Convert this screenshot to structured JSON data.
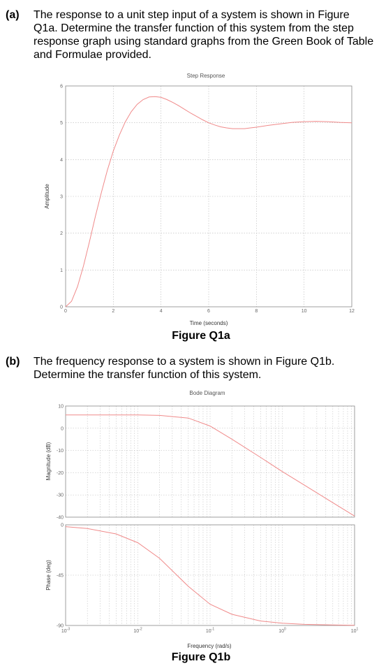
{
  "questions": {
    "a": {
      "label": "(a)",
      "text": "The response to a unit step input of a system is shown in Figure Q1a. Determine the transfer function of this system from the step response graph using standard graphs from the Green Book of Table and Formulae provided."
    },
    "b": {
      "label": "(b)",
      "text": "The frequency response to a system is shown in Figure Q1b. Determine the transfer function of this system."
    }
  },
  "figures": {
    "q1a_caption": "Figure Q1a",
    "q1b_caption": "Figure Q1b"
  },
  "colors": {
    "curve": "#f08a8a",
    "grid": "#b8b8b8",
    "axis": "#888888"
  },
  "chart_data": [
    {
      "type": "line",
      "title": "Step Response",
      "xlabel": "Time (seconds)",
      "ylabel": "Amplitude",
      "xlim": [
        0,
        12
      ],
      "ylim": [
        0,
        6
      ],
      "xticks": [
        "0",
        "2",
        "4",
        "6",
        "8",
        "10",
        "12"
      ],
      "yticks": [
        "0",
        "1",
        "2",
        "3",
        "4",
        "5",
        "6"
      ],
      "grid": true,
      "series": [
        {
          "x": [
            0,
            0.25,
            0.5,
            0.75,
            1.0,
            1.25,
            1.5,
            1.75,
            2.0,
            2.25,
            2.5,
            2.75,
            3.0,
            3.25,
            3.5,
            3.75,
            4.0,
            4.25,
            4.5,
            4.75,
            5.0,
            5.25,
            5.5,
            5.75,
            6.0,
            6.25,
            6.5,
            6.75,
            7.0,
            7.25,
            7.5,
            7.75,
            8.0,
            8.5,
            9.0,
            9.5,
            10.0,
            10.5,
            11.0,
            11.5,
            12.0
          ],
          "y": [
            0,
            0.15,
            0.55,
            1.11,
            1.77,
            2.46,
            3.11,
            3.71,
            4.23,
            4.66,
            5.02,
            5.3,
            5.5,
            5.63,
            5.7,
            5.71,
            5.69,
            5.63,
            5.55,
            5.46,
            5.36,
            5.26,
            5.17,
            5.08,
            5.0,
            4.94,
            4.89,
            4.86,
            4.84,
            4.84,
            4.84,
            4.86,
            4.88,
            4.93,
            4.97,
            5.01,
            5.03,
            5.04,
            5.03,
            5.01,
            5.0
          ]
        }
      ]
    },
    {
      "type": "line",
      "title": "Bode Diagram",
      "xlabel": "Frequency  (rad/s)",
      "xscale": "log",
      "xlim": [
        0.001,
        10
      ],
      "grid": true,
      "xtick_labels": [
        {
          "base": "10",
          "exp": "-3"
        },
        {
          "base": "10",
          "exp": "-2"
        },
        {
          "base": "10",
          "exp": "-1"
        },
        {
          "base": "10",
          "exp": "0"
        },
        {
          "base": "10",
          "exp": "1"
        }
      ],
      "magnitude": {
        "ylabel": "Magnitude (dB)",
        "ylim": [
          -40,
          10
        ],
        "yticks": [
          "10",
          "0",
          "-10",
          "-20",
          "-30",
          "-40"
        ],
        "x": [
          0.001,
          0.002,
          0.005,
          0.01,
          0.02,
          0.05,
          0.1,
          0.2,
          0.5,
          1,
          2,
          5,
          10
        ],
        "y": [
          6.0,
          6.0,
          6.0,
          6.0,
          5.8,
          4.6,
          1.0,
          -4.9,
          -13.1,
          -19.5,
          -25.5,
          -33.5,
          -39.5
        ]
      },
      "phase": {
        "ylabel": "Phase (deg)",
        "ylim": [
          -90,
          0
        ],
        "yticks": [
          "0",
          "-45",
          "-90"
        ],
        "x": [
          0.001,
          0.002,
          0.005,
          0.01,
          0.02,
          0.05,
          0.1,
          0.2,
          0.5,
          1,
          2,
          5,
          10
        ],
        "y": [
          -1.6,
          -3.3,
          -8.1,
          -16.0,
          -30.0,
          -55.0,
          -71.0,
          -80.0,
          -86.0,
          -88.0,
          -89.0,
          -89.5,
          -89.8
        ]
      }
    }
  ]
}
